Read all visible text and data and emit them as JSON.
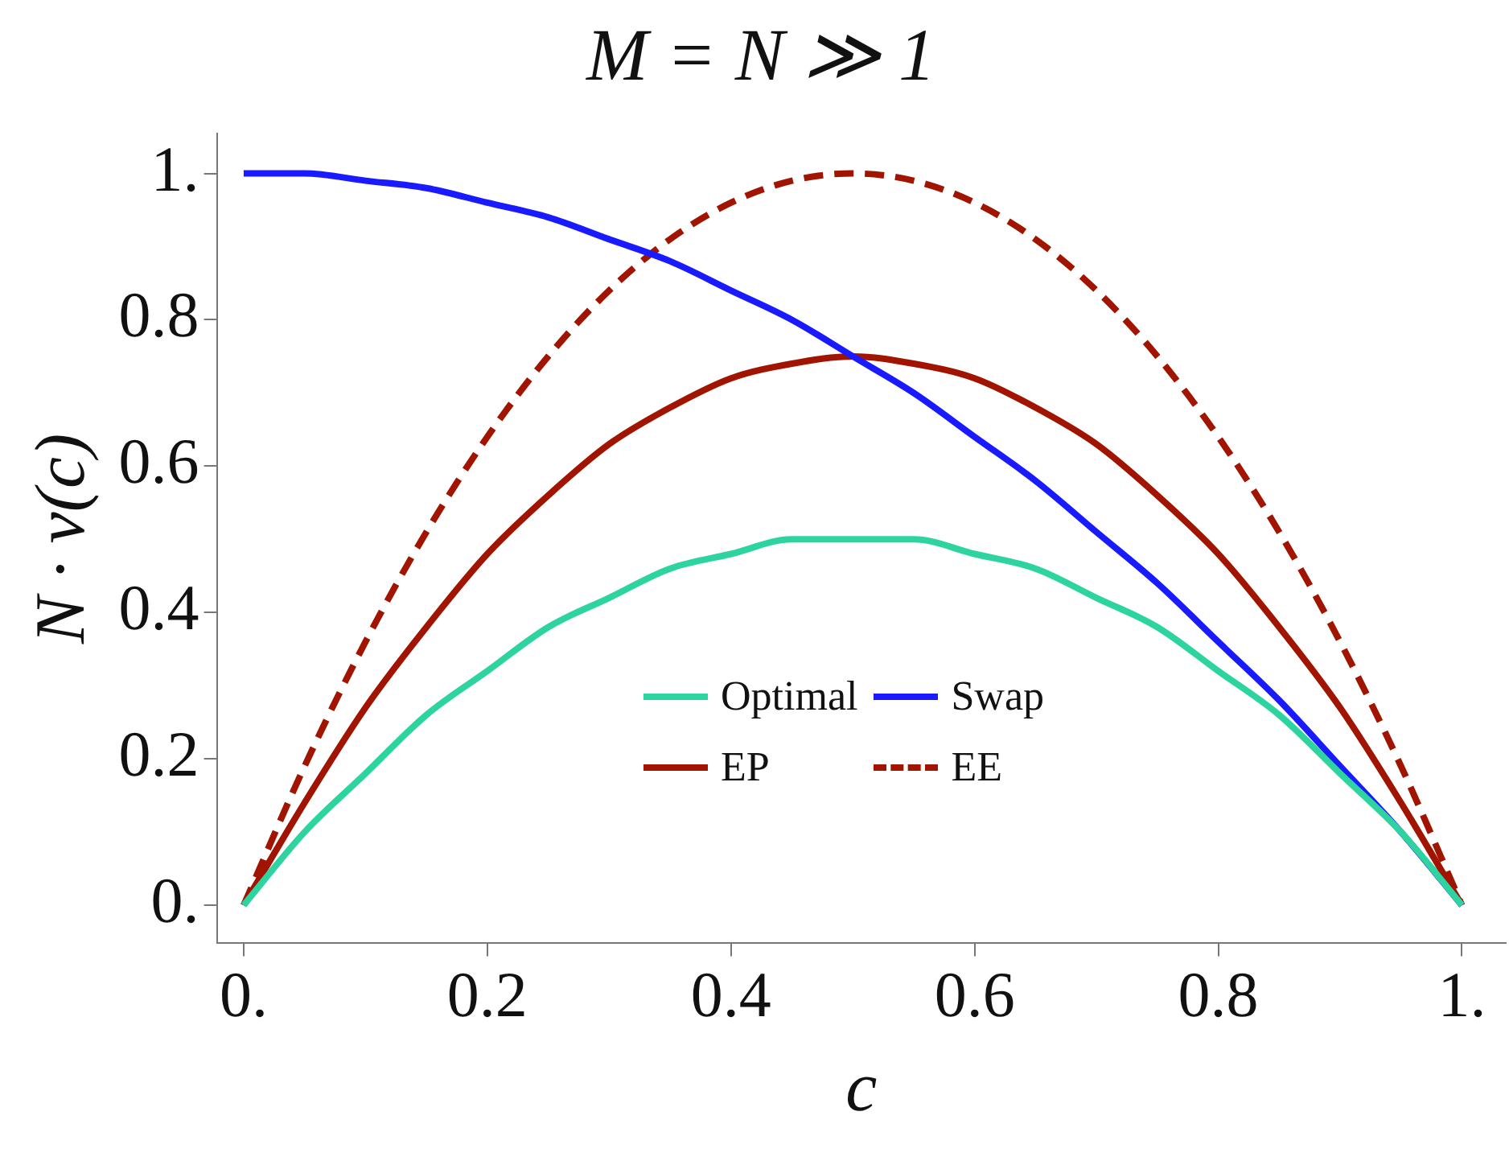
{
  "chart_data": {
    "type": "line",
    "title": "M = N ≫ 1",
    "xlabel": "c",
    "ylabel": "N · v(c)",
    "x": [
      0,
      0.05,
      0.1,
      0.15,
      0.2,
      0.25,
      0.3,
      0.35,
      0.4,
      0.45,
      0.5,
      0.55,
      0.6,
      0.65,
      0.7,
      0.75,
      0.8,
      0.85,
      0.9,
      0.95,
      1
    ],
    "series": [
      {
        "name": "Optimal",
        "color": "#2dd4a0",
        "line_style": "solid",
        "values": [
          0,
          0.1,
          0.18,
          0.26,
          0.32,
          0.38,
          0.42,
          0.46,
          0.48,
          0.5,
          0.5,
          0.5,
          0.48,
          0.46,
          0.42,
          0.38,
          0.32,
          0.26,
          0.18,
          0.1,
          0
        ]
      },
      {
        "name": "Swap",
        "color": "#1a1aff",
        "line_style": "solid",
        "values": [
          1,
          1,
          0.99,
          0.98,
          0.96,
          0.94,
          0.91,
          0.88,
          0.84,
          0.8,
          0.75,
          0.7,
          0.64,
          0.58,
          0.51,
          0.44,
          0.36,
          0.28,
          0.19,
          0.1,
          0
        ]
      },
      {
        "name": "EP",
        "color": "#a01400",
        "line_style": "solid",
        "values": [
          0,
          0.14,
          0.27,
          0.38,
          0.48,
          0.56,
          0.63,
          0.68,
          0.72,
          0.74,
          0.75,
          0.74,
          0.72,
          0.68,
          0.63,
          0.56,
          0.48,
          0.38,
          0.27,
          0.14,
          0
        ]
      },
      {
        "name": "EE",
        "color": "#a01400",
        "line_style": "dashed",
        "values": [
          0,
          0.19,
          0.36,
          0.51,
          0.64,
          0.75,
          0.84,
          0.91,
          0.96,
          0.99,
          1,
          0.99,
          0.96,
          0.91,
          0.84,
          0.75,
          0.64,
          0.51,
          0.36,
          0.19,
          0
        ]
      }
    ],
    "xlim": [
      -0.022,
      1.036
    ],
    "ylim": [
      -0.052,
      1.054
    ],
    "xticks": [
      {
        "value": 0,
        "label": "0."
      },
      0.2,
      0.4,
      0.6,
      0.8,
      {
        "value": 1,
        "label": "1."
      }
    ],
    "yticks": [
      {
        "value": 0,
        "label": "0."
      },
      0.2,
      0.4,
      0.6,
      0.8,
      {
        "value": 1,
        "label": "1."
      }
    ],
    "grid": false,
    "legend": "bottom",
    "marker": "none"
  }
}
